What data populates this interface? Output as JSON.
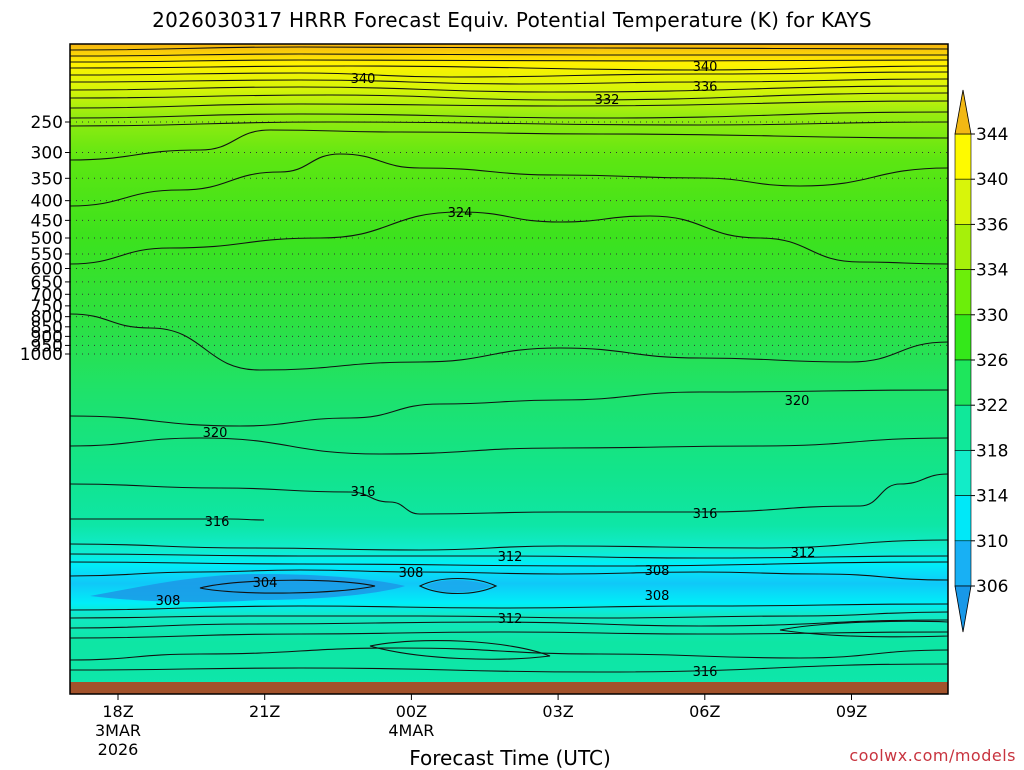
{
  "chart_data": {
    "type": "heatmap",
    "title": "2026030317 HRRR Forecast Equiv. Potential Temperature (K) for KAYS",
    "xlabel": "Forecast Time (UTC)",
    "ylabel": "",
    "y_ticks": [
      "250",
      "300",
      "350",
      "400",
      "450",
      "500",
      "550",
      "600",
      "650",
      "700",
      "750",
      "800",
      "850",
      "900",
      "950",
      "1000"
    ],
    "x_ticks": [
      {
        "label": "18Z",
        "sub1": "3MAR",
        "sub2": "2026"
      },
      {
        "label": "21Z",
        "sub1": "",
        "sub2": ""
      },
      {
        "label": "00Z",
        "sub1": "4MAR",
        "sub2": ""
      },
      {
        "label": "03Z",
        "sub1": "",
        "sub2": ""
      },
      {
        "label": "06Z",
        "sub1": "",
        "sub2": ""
      },
      {
        "label": "09Z",
        "sub1": "",
        "sub2": ""
      }
    ],
    "colorbar": {
      "levels": [
        "344",
        "340",
        "336",
        "334",
        "330",
        "326",
        "322",
        "318",
        "314",
        "310",
        "306"
      ],
      "colors": [
        "#f2b814",
        "#fefa00",
        "#d8f50a",
        "#a6f00a",
        "#6cee0a",
        "#34e81a",
        "#1ee65c",
        "#10e89a",
        "#12ecc8",
        "#00e8f8",
        "#18b0f4",
        "#1898e8"
      ]
    },
    "contour_labels": [
      {
        "text": "340",
        "level": 340
      },
      {
        "text": "340",
        "level": 340
      },
      {
        "text": "336",
        "level": 336
      },
      {
        "text": "332",
        "level": 332
      },
      {
        "text": "324",
        "level": 324
      },
      {
        "text": "320",
        "level": 320
      },
      {
        "text": "320",
        "level": 320
      },
      {
        "text": "316",
        "level": 316
      },
      {
        "text": "316",
        "level": 316
      },
      {
        "text": "316",
        "level": 316
      },
      {
        "text": "316",
        "level": 316
      },
      {
        "text": "312",
        "level": 312
      },
      {
        "text": "312",
        "level": 312
      },
      {
        "text": "312",
        "level": 312
      },
      {
        "text": "308",
        "level": 308
      },
      {
        "text": "308",
        "level": 308
      },
      {
        "text": "308",
        "level": 308
      },
      {
        "text": "308",
        "level": 308
      },
      {
        "text": "304",
        "level": 304
      }
    ],
    "credit": "coolwx.com/models"
  }
}
